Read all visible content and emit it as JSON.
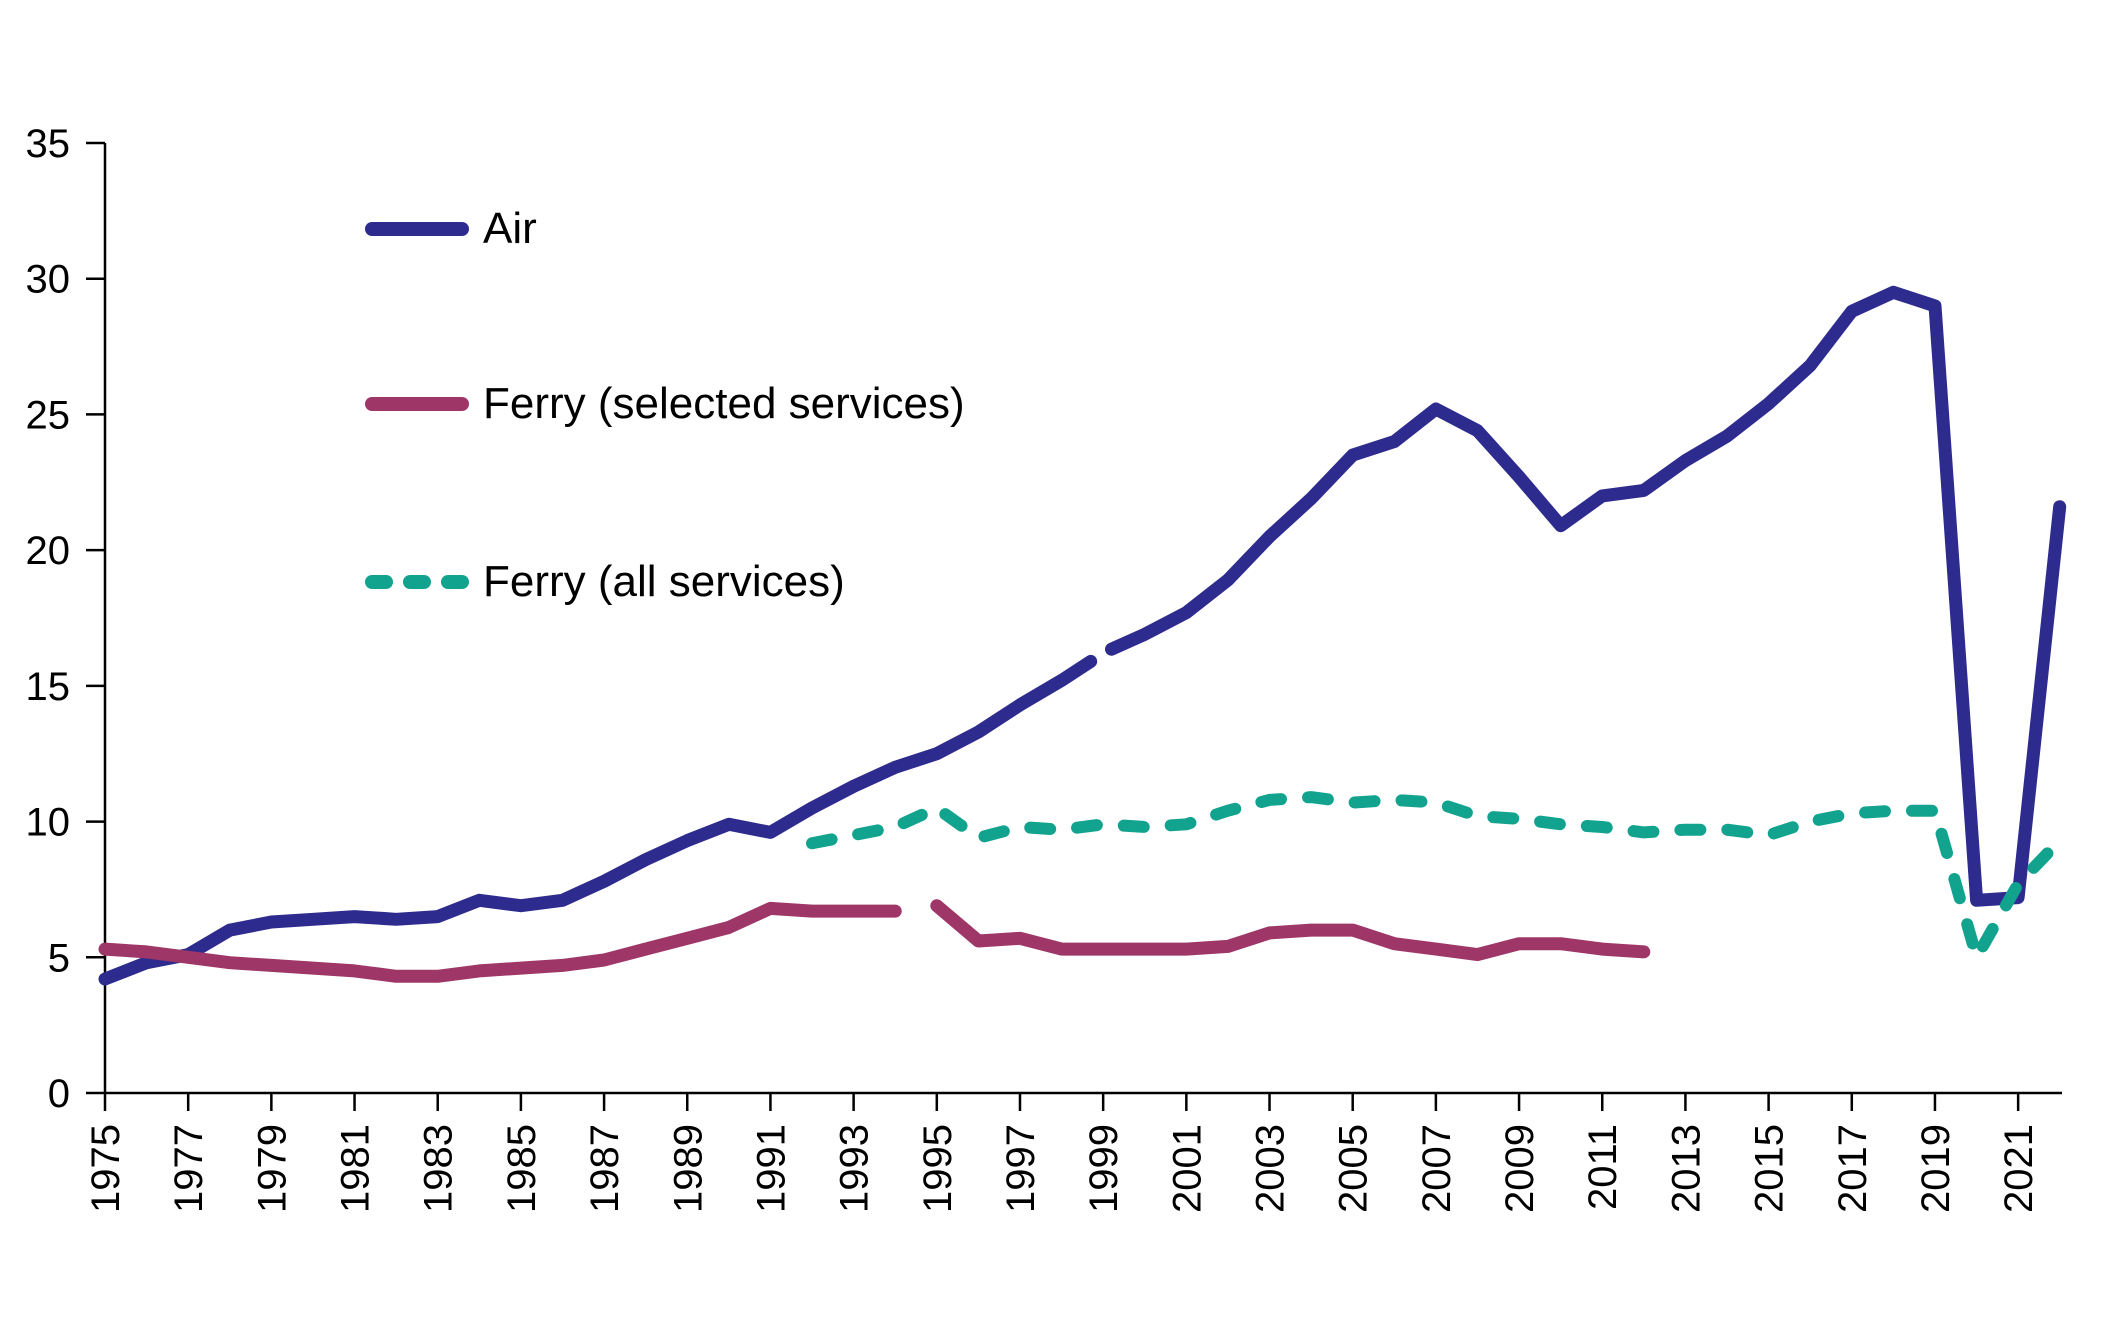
{
  "figure": {
    "background": "#ffffff",
    "axis_color": "#000000",
    "text_color": "#000000"
  },
  "legend": {
    "items": [
      {
        "label": "Air",
        "color": "#2e2b8e",
        "style": "solid"
      },
      {
        "label": "Ferry (selected services)",
        "color": "#9e3668",
        "style": "solid"
      },
      {
        "label": "Ferry (all services)",
        "color": "#12a38f",
        "style": "dashed"
      }
    ]
  },
  "chart_data": {
    "type": "line",
    "title": "",
    "xlabel": "",
    "ylabel": "",
    "ylim": [
      0,
      35
    ],
    "yticks": [
      0,
      5,
      10,
      15,
      20,
      25,
      30,
      35
    ],
    "xticks": [
      1975,
      1977,
      1979,
      1981,
      1983,
      1985,
      1987,
      1989,
      1991,
      1993,
      1995,
      1997,
      1999,
      2001,
      2003,
      2005,
      2007,
      2009,
      2011,
      2013,
      2015,
      2017,
      2019,
      2021
    ],
    "x_range": [
      1975,
      2022
    ],
    "grid": false,
    "legend_position": "upper-left-inside",
    "series": [
      {
        "name": "Air",
        "color": "#2e2b8e",
        "style": "solid",
        "line_width": 13,
        "note": "break in series between 1998 and 1999",
        "segments": [
          [
            [
              1975,
              4.2
            ],
            [
              1976,
              4.8
            ],
            [
              1977,
              5.1
            ],
            [
              1978,
              6.0
            ],
            [
              1979,
              6.3
            ],
            [
              1980,
              6.4
            ],
            [
              1981,
              6.5
            ],
            [
              1982,
              6.4
            ],
            [
              1983,
              6.5
            ],
            [
              1984,
              7.1
            ],
            [
              1985,
              6.9
            ],
            [
              1986,
              7.1
            ],
            [
              1987,
              7.8
            ],
            [
              1988,
              8.6
            ],
            [
              1989,
              9.3
            ],
            [
              1990,
              9.9
            ],
            [
              1991,
              9.6
            ],
            [
              1992,
              10.5
            ],
            [
              1993,
              11.3
            ],
            [
              1994,
              12.0
            ],
            [
              1995,
              12.5
            ],
            [
              1996,
              13.3
            ],
            [
              1997,
              14.3
            ],
            [
              1998,
              15.2
            ],
            [
              1998.7,
              15.9
            ]
          ],
          [
            [
              1999.2,
              16.35
            ],
            [
              2000,
              16.9
            ],
            [
              2001,
              17.7
            ],
            [
              2002,
              18.9
            ],
            [
              2003,
              20.5
            ],
            [
              2004,
              21.9
            ],
            [
              2005,
              23.5
            ],
            [
              2006,
              24.0
            ],
            [
              2007,
              25.2
            ],
            [
              2008,
              24.4
            ],
            [
              2009,
              22.7
            ],
            [
              2010,
              20.9
            ],
            [
              2011,
              22.0
            ],
            [
              2012,
              22.2
            ],
            [
              2013,
              23.3
            ],
            [
              2014,
              24.2
            ],
            [
              2015,
              25.4
            ],
            [
              2016,
              26.8
            ],
            [
              2017,
              28.8
            ],
            [
              2018,
              29.5
            ],
            [
              2019,
              29.0
            ],
            [
              2020,
              7.1
            ],
            [
              2021,
              7.2
            ],
            [
              2022,
              21.6
            ]
          ]
        ]
      },
      {
        "name": "Ferry (selected services)",
        "color": "#9e3668",
        "style": "solid",
        "line_width": 13,
        "note": "break in series between 1994 and 1995",
        "segments": [
          [
            [
              1975,
              5.3
            ],
            [
              1976,
              5.2
            ],
            [
              1977,
              5.0
            ],
            [
              1978,
              4.8
            ],
            [
              1979,
              4.7
            ],
            [
              1980,
              4.6
            ],
            [
              1981,
              4.5
            ],
            [
              1982,
              4.3
            ],
            [
              1983,
              4.3
            ],
            [
              1984,
              4.5
            ],
            [
              1985,
              4.6
            ],
            [
              1986,
              4.7
            ],
            [
              1987,
              4.9
            ],
            [
              1988,
              5.3
            ],
            [
              1989,
              5.7
            ],
            [
              1990,
              6.1
            ],
            [
              1991,
              6.8
            ],
            [
              1992,
              6.7
            ],
            [
              1993,
              6.7
            ],
            [
              1994,
              6.7
            ]
          ],
          [
            [
              1995,
              6.9
            ],
            [
              1996,
              5.6
            ],
            [
              1997,
              5.7
            ],
            [
              1998,
              5.3
            ],
            [
              1999,
              5.3
            ],
            [
              2000,
              5.3
            ],
            [
              2001,
              5.3
            ],
            [
              2002,
              5.4
            ],
            [
              2003,
              5.9
            ],
            [
              2004,
              6.0
            ],
            [
              2005,
              6.0
            ],
            [
              2006,
              5.5
            ],
            [
              2007,
              5.3
            ],
            [
              2008,
              5.1
            ],
            [
              2009,
              5.5
            ],
            [
              2010,
              5.5
            ],
            [
              2011,
              5.3
            ],
            [
              2012,
              5.2
            ]
          ]
        ]
      },
      {
        "name": "Ferry (all services)",
        "color": "#12a38f",
        "style": "dashed",
        "line_width": 12,
        "segments": [
          [
            [
              1992,
              9.2
            ],
            [
              1993,
              9.5
            ],
            [
              1994,
              9.8
            ],
            [
              1995,
              10.5
            ],
            [
              1996,
              9.4
            ],
            [
              1997,
              9.8
            ],
            [
              1998,
              9.7
            ],
            [
              1999,
              9.9
            ],
            [
              2000,
              9.8
            ],
            [
              2001,
              9.9
            ],
            [
              2002,
              10.4
            ],
            [
              2003,
              10.8
            ],
            [
              2004,
              10.9
            ],
            [
              2005,
              10.7
            ],
            [
              2006,
              10.8
            ],
            [
              2007,
              10.7
            ],
            [
              2008,
              10.2
            ],
            [
              2009,
              10.1
            ],
            [
              2010,
              9.9
            ],
            [
              2011,
              9.8
            ],
            [
              2012,
              9.6
            ],
            [
              2013,
              9.7
            ],
            [
              2014,
              9.7
            ],
            [
              2015,
              9.5
            ],
            [
              2016,
              10.0
            ],
            [
              2017,
              10.3
            ],
            [
              2018,
              10.4
            ],
            [
              2019,
              10.4
            ],
            [
              2020,
              5.0
            ],
            [
              2021,
              7.7
            ],
            [
              2022,
              9.3
            ]
          ]
        ]
      }
    ]
  }
}
